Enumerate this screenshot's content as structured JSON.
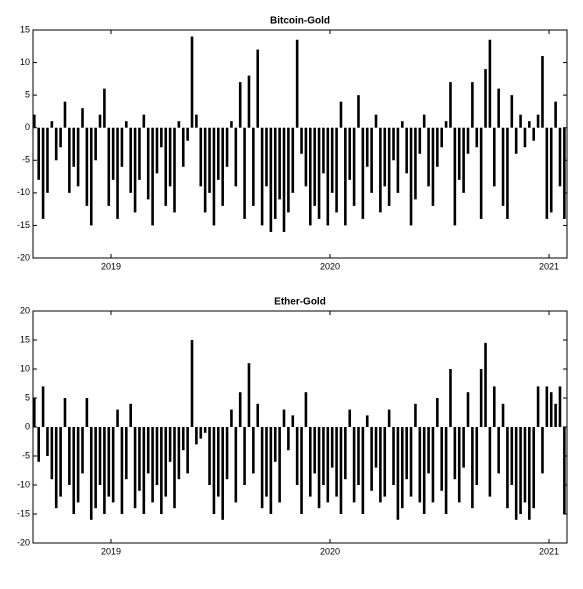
{
  "chart_data": [
    {
      "type": "bar",
      "title": "Bitcoin-Gold",
      "color": "#000000",
      "x": [
        2018.65,
        2018.67,
        2018.69,
        2018.71,
        2018.73,
        2018.75,
        2018.77,
        2018.79,
        2018.81,
        2018.83,
        2018.85,
        2018.87,
        2018.89,
        2018.91,
        2018.93,
        2018.95,
        2018.97,
        2018.99,
        2019.01,
        2019.03,
        2019.05,
        2019.07,
        2019.09,
        2019.11,
        2019.13,
        2019.15,
        2019.17,
        2019.19,
        2019.21,
        2019.23,
        2019.25,
        2019.27,
        2019.29,
        2019.31,
        2019.33,
        2019.35,
        2019.37,
        2019.39,
        2019.41,
        2019.43,
        2019.45,
        2019.47,
        2019.49,
        2019.51,
        2019.53,
        2019.55,
        2019.57,
        2019.59,
        2019.61,
        2019.63,
        2019.65,
        2019.67,
        2019.69,
        2019.71,
        2019.73,
        2019.75,
        2019.77,
        2019.79,
        2019.81,
        2019.83,
        2019.85,
        2019.87,
        2019.89,
        2019.91,
        2019.93,
        2019.95,
        2019.97,
        2019.99,
        2020.01,
        2020.03,
        2020.05,
        2020.07,
        2020.09,
        2020.11,
        2020.13,
        2020.15,
        2020.17,
        2020.19,
        2020.21,
        2020.23,
        2020.25,
        2020.27,
        2020.29,
        2020.31,
        2020.33,
        2020.35,
        2020.37,
        2020.39,
        2020.41,
        2020.43,
        2020.45,
        2020.47,
        2020.49,
        2020.51,
        2020.53,
        2020.55,
        2020.57,
        2020.59,
        2020.61,
        2020.63,
        2020.65,
        2020.67,
        2020.69,
        2020.71,
        2020.73,
        2020.75,
        2020.77,
        2020.79,
        2020.81,
        2020.83,
        2020.85,
        2020.87,
        2020.89,
        2020.91,
        2020.93,
        2020.95,
        2020.97,
        2020.99,
        2021.01,
        2021.03,
        2021.05,
        2021.07
      ],
      "values": [
        2,
        -8,
        -14,
        -10,
        1,
        -5,
        -3,
        4,
        -10,
        -6,
        -9,
        3,
        -12,
        -15,
        -5,
        2,
        6,
        -12,
        -8,
        -14,
        -6,
        1,
        -10,
        -13,
        -8,
        2,
        -11,
        -15,
        -7,
        -3,
        -12,
        -9,
        -13,
        1,
        -6,
        -2,
        14,
        2,
        -9,
        -13,
        -10,
        -15,
        -8,
        -12,
        -6,
        1,
        -9,
        7,
        -14,
        8,
        -12,
        12,
        -15,
        -9,
        -16,
        -14,
        -11,
        -16,
        -13,
        -10,
        13.5,
        -4,
        -9,
        -15,
        -12,
        -14,
        -7,
        -15,
        -10,
        -13,
        4,
        -15,
        -8,
        -12,
        5,
        -14,
        -6,
        -10,
        2,
        -13,
        -9,
        -12,
        -5,
        -10,
        1,
        -7,
        -15,
        -11,
        -4,
        2,
        -9,
        -12,
        -6,
        -3,
        1,
        7,
        -15,
        -8,
        -10,
        -4,
        7,
        -3,
        -14,
        9,
        13.5,
        -9,
        6,
        -12,
        -14,
        5,
        -4,
        2,
        -3,
        1,
        -2,
        2,
        11,
        -14,
        -13,
        4,
        -9,
        -14
      ],
      "xlim": [
        2018.644,
        2021.082
      ],
      "xticks": [
        2019,
        2020,
        2021
      ],
      "ylim": [
        -20,
        15
      ],
      "yticks": [
        -20,
        -15,
        -10,
        -5,
        0,
        5,
        10,
        15
      ]
    },
    {
      "type": "bar",
      "title": "Ether-Gold",
      "color": "#000000",
      "x": [
        2018.65,
        2018.67,
        2018.69,
        2018.71,
        2018.73,
        2018.75,
        2018.77,
        2018.79,
        2018.81,
        2018.83,
        2018.85,
        2018.87,
        2018.89,
        2018.91,
        2018.93,
        2018.95,
        2018.97,
        2018.99,
        2019.01,
        2019.03,
        2019.05,
        2019.07,
        2019.09,
        2019.11,
        2019.13,
        2019.15,
        2019.17,
        2019.19,
        2019.21,
        2019.23,
        2019.25,
        2019.27,
        2019.29,
        2019.31,
        2019.33,
        2019.35,
        2019.37,
        2019.39,
        2019.41,
        2019.43,
        2019.45,
        2019.47,
        2019.49,
        2019.51,
        2019.53,
        2019.55,
        2019.57,
        2019.59,
        2019.61,
        2019.63,
        2019.65,
        2019.67,
        2019.69,
        2019.71,
        2019.73,
        2019.75,
        2019.77,
        2019.79,
        2019.81,
        2019.83,
        2019.85,
        2019.87,
        2019.89,
        2019.91,
        2019.93,
        2019.95,
        2019.97,
        2019.99,
        2020.01,
        2020.03,
        2020.05,
        2020.07,
        2020.09,
        2020.11,
        2020.13,
        2020.15,
        2020.17,
        2020.19,
        2020.21,
        2020.23,
        2020.25,
        2020.27,
        2020.29,
        2020.31,
        2020.33,
        2020.35,
        2020.37,
        2020.39,
        2020.41,
        2020.43,
        2020.45,
        2020.47,
        2020.49,
        2020.51,
        2020.53,
        2020.55,
        2020.57,
        2020.59,
        2020.61,
        2020.63,
        2020.65,
        2020.67,
        2020.69,
        2020.71,
        2020.73,
        2020.75,
        2020.77,
        2020.79,
        2020.81,
        2020.83,
        2020.85,
        2020.87,
        2020.89,
        2020.91,
        2020.93,
        2020.95,
        2020.97,
        2020.99,
        2021.01,
        2021.03,
        2021.05,
        2021.07
      ],
      "values": [
        5,
        -6,
        7,
        -5,
        -9,
        -14,
        -12,
        5,
        -10,
        -15,
        -13,
        -8,
        5,
        -16,
        -14,
        -10,
        -15,
        -12,
        -13,
        3,
        -15,
        -9,
        4,
        -14,
        -11,
        -15,
        -8,
        -13,
        -10,
        -15,
        -12,
        -6,
        -14,
        -9,
        -4,
        -8,
        15,
        -3,
        -2,
        -1,
        -10,
        -15,
        -12,
        -16,
        -9,
        3,
        -13,
        6,
        -10,
        11,
        -8,
        4,
        -14,
        -12,
        -15,
        -6,
        -13,
        3,
        -4,
        2,
        -10,
        -15,
        6,
        -12,
        -8,
        -14,
        -10,
        -13,
        -7,
        -12,
        -15,
        -9,
        3,
        -13,
        -10,
        -15,
        2,
        -11,
        -7,
        -13,
        -12,
        3,
        -10,
        -16,
        -14,
        -9,
        -12,
        4,
        -13,
        -15,
        -8,
        -13,
        5,
        -11,
        -15,
        10,
        -9,
        -13,
        -7,
        6,
        -14,
        -10,
        10,
        14.5,
        -12,
        7,
        -8,
        4,
        -14,
        -10,
        -16,
        -15,
        -13,
        -16,
        -14,
        7,
        -8,
        7,
        6,
        4,
        7,
        -15
      ],
      "xlim": [
        2018.644,
        2021.082
      ],
      "xticks": [
        2019,
        2020,
        2021
      ],
      "ylim": [
        -20,
        20
      ],
      "yticks": [
        -20,
        -15,
        -10,
        -5,
        0,
        5,
        10,
        15,
        20
      ]
    }
  ]
}
